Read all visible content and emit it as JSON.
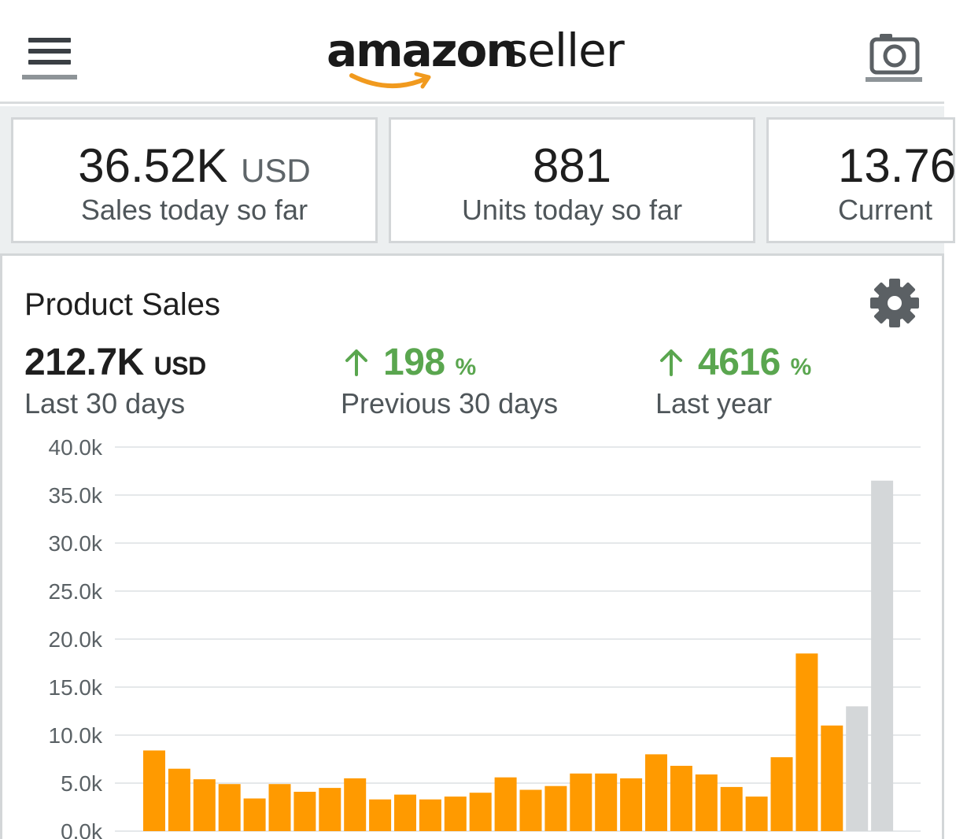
{
  "header": {
    "brand": "amazon",
    "product": "seller",
    "colors": {
      "smile": "#f19a1e",
      "text": "#1a1a1a"
    },
    "icons": {
      "menu": "hamburger-menu-icon",
      "camera": "camera-icon"
    }
  },
  "metrics": [
    {
      "value": "36.52K",
      "unit": "USD",
      "label": "Sales today so far"
    },
    {
      "value": "881",
      "unit": "",
      "label": "Units today so far"
    },
    {
      "value": "13.76",
      "unit": "",
      "label": "Current"
    }
  ],
  "panel": {
    "title": "Product Sales",
    "settings_icon": "gear-icon",
    "stats": [
      {
        "value": "212.7K",
        "unit": "USD",
        "label": "Last 30 days",
        "direction": ""
      },
      {
        "value": "198",
        "unit": "%",
        "label": "Previous 30 days",
        "direction": "up"
      },
      {
        "value": "4616",
        "unit": "%",
        "label": "Last year",
        "direction": "up"
      }
    ],
    "colors": {
      "up": "#5aa64f"
    }
  },
  "chart_data": {
    "type": "bar",
    "title": "",
    "xlabel": "",
    "ylabel": "",
    "ylim": [
      0,
      40000
    ],
    "yticks": [
      0,
      5000,
      10000,
      15000,
      20000,
      25000,
      30000,
      35000,
      40000
    ],
    "ytick_labels": [
      "0.0k",
      "5.0k",
      "10.0k",
      "15.0k",
      "20.0k",
      "25.0k",
      "30.0k",
      "35.0k",
      "40.0k"
    ],
    "grid": true,
    "colors": {
      "bar": "#ff9a00",
      "bar_muted": "#d4d7d9",
      "grid": "#e5e8ea",
      "tick_text": "#5b6266"
    },
    "values": [
      8400,
      6500,
      5400,
      4900,
      3400,
      4900,
      4100,
      4500,
      5500,
      3300,
      3800,
      3300,
      3600,
      4000,
      5600,
      4300,
      4700,
      6000,
      6000,
      5500,
      8000,
      6800,
      5900,
      4600,
      3600,
      7700,
      18500,
      11000,
      13000,
      36500
    ],
    "highlight": [
      true,
      true,
      true,
      true,
      true,
      true,
      true,
      true,
      true,
      true,
      true,
      true,
      true,
      true,
      true,
      true,
      true,
      true,
      true,
      true,
      true,
      true,
      true,
      true,
      true,
      true,
      true,
      true,
      false,
      false
    ]
  }
}
